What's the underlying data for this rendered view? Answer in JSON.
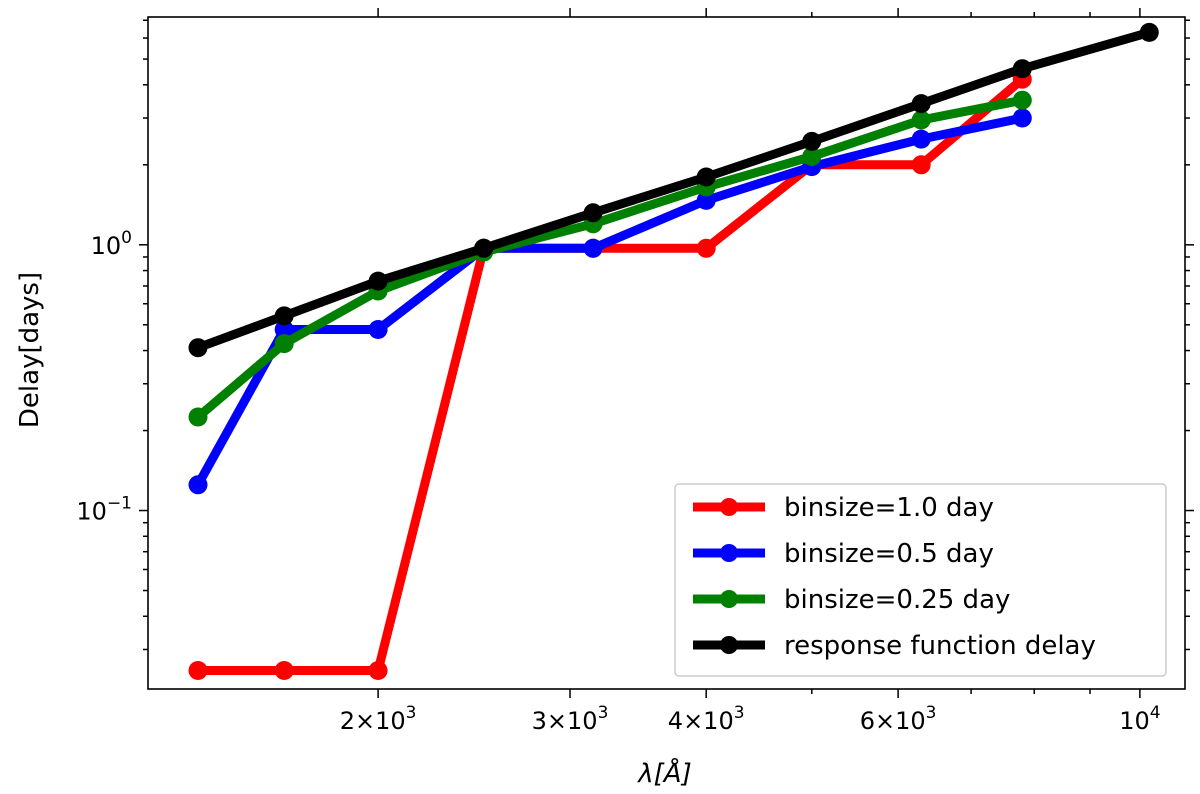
{
  "chart_data": {
    "type": "line",
    "xscale": "log",
    "yscale": "log",
    "xlabel": "λ[Å]",
    "ylabel": "Delay[days]",
    "xlim": [
      1230,
      11000
    ],
    "ylim": [
      0.0213,
      7.2
    ],
    "x_ticks": [
      {
        "value": 2000,
        "base": "2",
        "exp": "3"
      },
      {
        "value": 3000,
        "base": "3",
        "exp": "3"
      },
      {
        "value": 4000,
        "base": "4",
        "exp": "3"
      },
      {
        "value": 6000,
        "base": "6",
        "exp": "3"
      },
      {
        "value": 10000,
        "base": "",
        "exp": "4"
      }
    ],
    "y_ticks": [
      {
        "value": 0.1,
        "exp": "−1"
      },
      {
        "value": 1,
        "exp": "0"
      }
    ],
    "series": [
      {
        "name": "binsize=1.0 day",
        "color": "#ff0000",
        "x": [
          1367,
          1640,
          2000,
          2500,
          3150,
          4000,
          5000,
          6300,
          7800
        ],
        "y": [
          0.025,
          0.025,
          0.025,
          0.97,
          0.97,
          0.97,
          2.0,
          2.0,
          4.2
        ]
      },
      {
        "name": "binsize=0.5 day",
        "color": "#0000ff",
        "x": [
          1367,
          1640,
          2000,
          2500,
          3150,
          4000,
          5000,
          6300,
          7800
        ],
        "y": [
          0.125,
          0.48,
          0.48,
          0.97,
          0.97,
          1.47,
          1.97,
          2.5,
          3.0
        ]
      },
      {
        "name": "binsize=0.25 day",
        "color": "#008000",
        "x": [
          1367,
          1640,
          2000,
          2500,
          3150,
          4000,
          5000,
          6300,
          7800
        ],
        "y": [
          0.225,
          0.425,
          0.67,
          0.94,
          1.2,
          1.65,
          2.15,
          2.95,
          3.5
        ]
      },
      {
        "name": "response function delay",
        "color": "#000000",
        "x": [
          1367,
          1640,
          2000,
          2500,
          3150,
          4000,
          5000,
          6300,
          7800,
          10200
        ],
        "y": [
          0.41,
          0.54,
          0.73,
          0.97,
          1.32,
          1.8,
          2.45,
          3.4,
          4.6,
          6.3
        ]
      }
    ],
    "legend": {
      "position": "bottom-right"
    },
    "grid": false
  }
}
